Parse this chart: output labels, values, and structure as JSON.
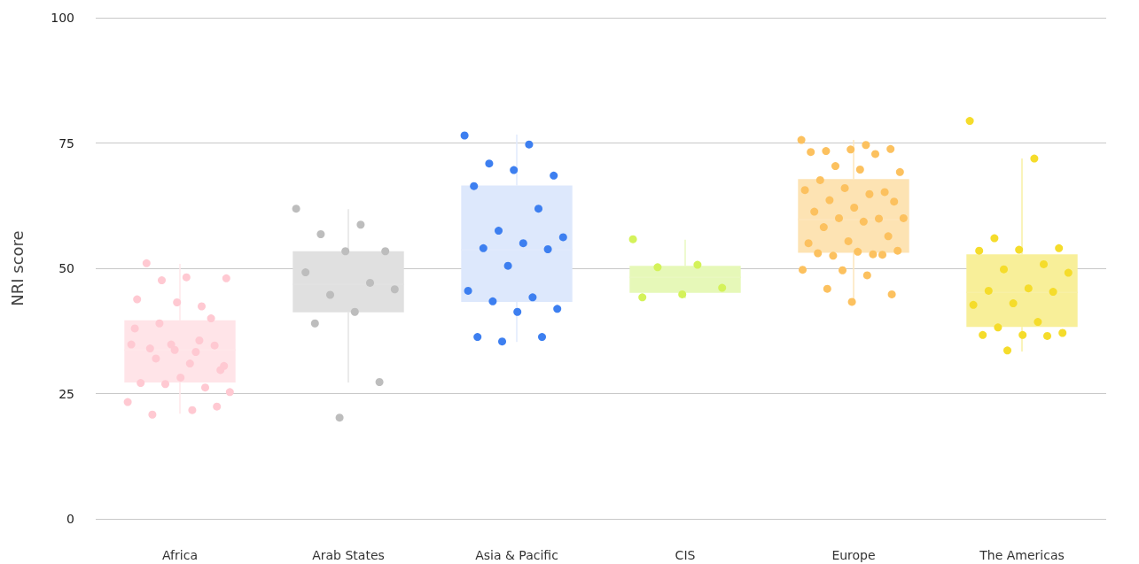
{
  "chart_data": {
    "type": "box",
    "ylabel": "NRI score",
    "categories": [
      "Africa",
      "Arab States",
      "Asia & Pacific",
      "CIS",
      "Europe",
      "The Americas"
    ],
    "ylim": [
      0,
      100
    ],
    "yticks": [
      0,
      25,
      50,
      75,
      100
    ],
    "grid": "y",
    "series": [
      {
        "type": "box",
        "colors": [
          "#ffe4e8",
          "#e0e0e0",
          "#dde8fc",
          "#e6f8b8",
          "#fde3b3",
          "#f8ef99"
        ],
        "boxes": [
          {
            "low": 21.0,
            "q1": 27.2,
            "median": 33.7,
            "q3": 39.6,
            "high": 50.9
          },
          {
            "low": 27.2,
            "q1": 41.2,
            "median": 46.8,
            "q3": 53.4,
            "high": 61.8
          },
          {
            "low": 35.3,
            "q1": 43.3,
            "median": 53.7,
            "q3": 66.5,
            "high": 76.7
          },
          {
            "low": 44.0,
            "q1": 45.1,
            "median": 48.2,
            "q3": 50.5,
            "high": 55.7
          },
          {
            "low": 43.3,
            "q1": 53.1,
            "median": 59.7,
            "q3": 67.8,
            "high": 75.6
          },
          {
            "low": 33.4,
            "q1": 38.3,
            "median": 45.2,
            "q3": 52.8,
            "high": 71.9
          }
        ]
      },
      {
        "type": "scatter",
        "color": "#ffc9d2",
        "x": [
          "Africa",
          "Africa",
          "Africa",
          "Africa",
          "Africa",
          "Africa",
          "Africa",
          "Africa",
          "Africa",
          "Africa",
          "Africa",
          "Africa",
          "Africa",
          "Africa",
          "Africa",
          "Africa",
          "Africa",
          "Africa",
          "Africa",
          "Africa",
          "Africa",
          "Africa",
          "Africa",
          "Africa",
          "Africa",
          "Africa",
          "Africa",
          "Africa",
          "Africa",
          "Africa"
        ],
        "values": [
          23.3,
          21.7,
          20.8,
          22.4,
          43.2,
          43.8,
          42.4,
          47.6,
          48.0,
          48.2,
          51.0,
          40.0,
          34.8,
          34.8,
          33.3,
          32.0,
          29.7,
          28.2,
          27.1,
          26.2,
          26.9,
          25.3,
          31.0,
          34.0,
          34.6,
          33.7,
          38.0,
          35.6,
          39.0,
          30.5
        ]
      },
      {
        "type": "scatter",
        "color": "#bdbdbd",
        "x": [
          "Arab States",
          "Arab States",
          "Arab States",
          "Arab States",
          "Arab States",
          "Arab States",
          "Arab States",
          "Arab States",
          "Arab States",
          "Arab States",
          "Arab States",
          "Arab States",
          "Arab States"
        ],
        "values": [
          61.9,
          58.7,
          56.8,
          53.4,
          53.4,
          49.2,
          47.1,
          44.7,
          45.8,
          41.3,
          39.0,
          27.3,
          20.2
        ]
      },
      {
        "type": "scatter",
        "color": "#3d7ff0",
        "x": [
          "Asia & Pacific",
          "Asia & Pacific",
          "Asia & Pacific",
          "Asia & Pacific",
          "Asia & Pacific",
          "Asia & Pacific",
          "Asia & Pacific",
          "Asia & Pacific",
          "Asia & Pacific",
          "Asia & Pacific",
          "Asia & Pacific",
          "Asia & Pacific",
          "Asia & Pacific",
          "Asia & Pacific",
          "Asia & Pacific",
          "Asia & Pacific",
          "Asia & Pacific",
          "Asia & Pacific",
          "Asia & Pacific",
          "Asia & Pacific",
          "Asia & Pacific"
        ],
        "values": [
          76.5,
          74.7,
          70.9,
          68.5,
          69.6,
          66.4,
          61.9,
          57.5,
          56.2,
          55.0,
          54.0,
          53.8,
          50.5,
          45.5,
          44.2,
          43.4,
          41.9,
          41.3,
          36.3,
          36.3,
          35.4
        ]
      },
      {
        "type": "scatter",
        "color": "#d4f25a",
        "x": [
          "CIS",
          "CIS",
          "CIS",
          "CIS",
          "CIS",
          "CIS"
        ],
        "values": [
          55.8,
          50.7,
          50.2,
          46.1,
          44.8,
          44.2
        ]
      },
      {
        "type": "scatter",
        "color": "#fcc15f",
        "x": [
          "Europe",
          "Europe",
          "Europe",
          "Europe",
          "Europe",
          "Europe",
          "Europe",
          "Europe",
          "Europe",
          "Europe",
          "Europe",
          "Europe",
          "Europe",
          "Europe",
          "Europe",
          "Europe",
          "Europe",
          "Europe",
          "Europe",
          "Europe",
          "Europe",
          "Europe",
          "Europe",
          "Europe",
          "Europe",
          "Europe",
          "Europe",
          "Europe",
          "Europe",
          "Europe",
          "Europe",
          "Europe",
          "Europe",
          "Europe",
          "Europe",
          "Europe",
          "Europe",
          "Europe",
          "Europe"
        ],
        "values": [
          75.6,
          74.6,
          73.4,
          73.8,
          73.7,
          73.2,
          72.8,
          70.4,
          69.2,
          69.7,
          67.6,
          65.2,
          66.0,
          65.6,
          64.8,
          63.6,
          63.3,
          62.1,
          61.3,
          59.9,
          60.0,
          60.0,
          59.3,
          58.2,
          56.4,
          55.4,
          55.0,
          52.8,
          52.5,
          53.5,
          53.3,
          53.0,
          52.7,
          49.6,
          49.7,
          48.6,
          45.9,
          44.8,
          43.3
        ]
      },
      {
        "type": "scatter",
        "color": "#f5dc2b",
        "x": [
          "The Americas",
          "The Americas",
          "The Americas",
          "The Americas",
          "The Americas",
          "The Americas",
          "The Americas",
          "The Americas",
          "The Americas",
          "The Americas",
          "The Americas",
          "The Americas",
          "The Americas",
          "The Americas",
          "The Americas",
          "The Americas",
          "The Americas",
          "The Americas",
          "The Americas",
          "The Americas",
          "The Americas"
        ],
        "values": [
          79.4,
          71.9,
          56.0,
          54.0,
          53.7,
          53.5,
          50.8,
          49.8,
          49.1,
          46.0,
          45.5,
          45.3,
          43.0,
          42.7,
          39.3,
          38.2,
          37.1,
          36.7,
          36.7,
          36.5,
          33.6
        ]
      }
    ]
  }
}
